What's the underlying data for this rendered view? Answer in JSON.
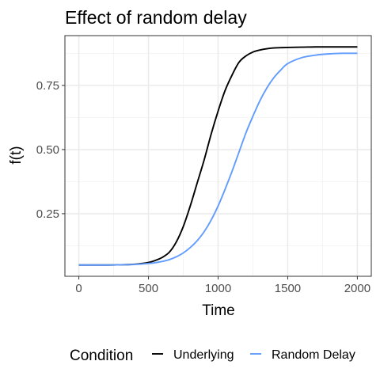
{
  "chart_data": {
    "type": "line",
    "title": "Effect of random delay",
    "xlabel": "Time",
    "ylabel": "f(t)",
    "xlim": [
      -100,
      2100
    ],
    "ylim": [
      0.006,
      0.944
    ],
    "x_ticks": [
      0,
      500,
      1000,
      1500,
      2000
    ],
    "x_tick_labels": [
      "0",
      "500",
      "1000",
      "1500",
      "2000"
    ],
    "y_ticks": [
      0.25,
      0.5,
      0.75
    ],
    "y_tick_labels": [
      "0.25",
      "0.50",
      "0.75"
    ],
    "grid": true,
    "legend_position": "bottom",
    "legend_title": "Condition",
    "x": [
      0,
      100,
      200,
      300,
      400,
      500,
      550,
      600,
      650,
      700,
      750,
      800,
      850,
      900,
      950,
      1000,
      1050,
      1100,
      1150,
      1200,
      1250,
      1300,
      1350,
      1400,
      1450,
      1500,
      1600,
      1700,
      1800,
      1900,
      2000
    ],
    "series": [
      {
        "name": "Underlying",
        "color": "#000000",
        "values": [
          0.05,
          0.05,
          0.05,
          0.051,
          0.053,
          0.06,
          0.068,
          0.08,
          0.1,
          0.14,
          0.2,
          0.28,
          0.37,
          0.46,
          0.56,
          0.65,
          0.73,
          0.79,
          0.84,
          0.865,
          0.88,
          0.888,
          0.893,
          0.896,
          0.897,
          0.898,
          0.899,
          0.9,
          0.9,
          0.9,
          0.9
        ]
      },
      {
        "name": "Random Delay",
        "color": "#619cff",
        "values": [
          0.05,
          0.05,
          0.05,
          0.051,
          0.052,
          0.056,
          0.059,
          0.064,
          0.071,
          0.082,
          0.097,
          0.118,
          0.145,
          0.18,
          0.225,
          0.28,
          0.345,
          0.415,
          0.49,
          0.565,
          0.63,
          0.69,
          0.74,
          0.78,
          0.81,
          0.835,
          0.858,
          0.868,
          0.873,
          0.875,
          0.875
        ]
      }
    ]
  }
}
